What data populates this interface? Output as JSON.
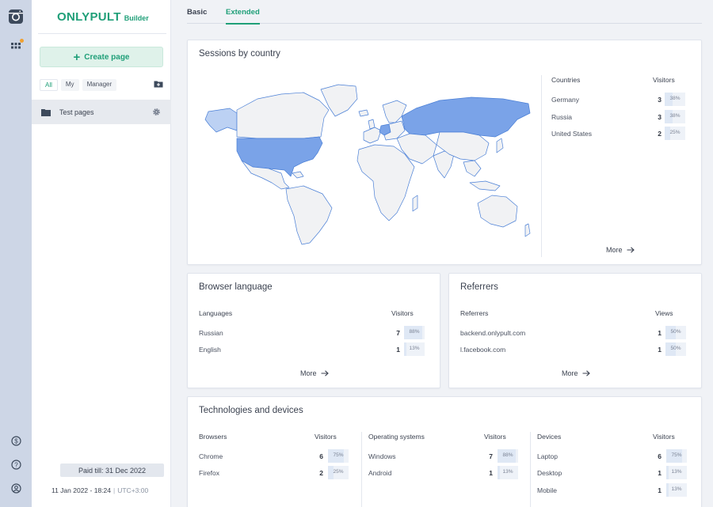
{
  "app": {
    "logo_main": "ONLYPULT",
    "logo_sub": "Builder",
    "accent_color": "#1f9f78",
    "map_highlight_color": "#7aa3e8"
  },
  "rail": {
    "icons": [
      "instagram-icon",
      "apps-grid-icon",
      "dollar-icon",
      "help-icon",
      "account-icon"
    ]
  },
  "sidebar": {
    "create_label": "Create page",
    "filters": [
      "All",
      "My",
      "Manager"
    ],
    "active_filter": "All",
    "pages": [
      {
        "name": "Test pages"
      }
    ],
    "paid_till": "Paid till: 31 Dec 2022",
    "datetime": "11 Jan 2022 - 18:24",
    "timezone": "UTC+3:00"
  },
  "tabs": [
    {
      "label": "Basic",
      "active": false
    },
    {
      "label": "Extended",
      "active": true
    }
  ],
  "sessions": {
    "title": "Sessions by country",
    "col_left": "Countries",
    "col_right": "Visitors",
    "rows": [
      {
        "label": "Germany",
        "value": "3",
        "pct": "38%",
        "frac": 0.38
      },
      {
        "label": "Russia",
        "value": "3",
        "pct": "38%",
        "frac": 0.38
      },
      {
        "label": "United States",
        "value": "2",
        "pct": "25%",
        "frac": 0.25
      }
    ],
    "more": "More"
  },
  "browser_language": {
    "title": "Browser language",
    "col_left": "Languages",
    "col_right": "Visitors",
    "rows": [
      {
        "label": "Russian",
        "value": "7",
        "pct": "88%",
        "frac": 0.88
      },
      {
        "label": "English",
        "value": "1",
        "pct": "13%",
        "frac": 0.13
      }
    ],
    "more": "More"
  },
  "referrers": {
    "title": "Referrers",
    "col_left": "Referrers",
    "col_right": "Views",
    "rows": [
      {
        "label": "backend.onlypult.com",
        "value": "1",
        "pct": "50%",
        "frac": 0.5
      },
      {
        "label": "l.facebook.com",
        "value": "1",
        "pct": "50%",
        "frac": 0.5
      }
    ],
    "more": "More"
  },
  "technologies": {
    "title": "Technologies and devices",
    "browsers": {
      "col_left": "Browsers",
      "col_right": "Visitors",
      "rows": [
        {
          "label": "Chrome",
          "value": "6",
          "pct": "75%",
          "frac": 0.75
        },
        {
          "label": "Firefox",
          "value": "2",
          "pct": "25%",
          "frac": 0.25
        }
      ]
    },
    "os": {
      "col_left": "Operating systems",
      "col_right": "Visitors",
      "rows": [
        {
          "label": "Windows",
          "value": "7",
          "pct": "88%",
          "frac": 0.88
        },
        {
          "label": "Android",
          "value": "1",
          "pct": "13%",
          "frac": 0.13
        }
      ]
    },
    "devices": {
      "col_left": "Devices",
      "col_right": "Visitors",
      "rows": [
        {
          "label": "Laptop",
          "value": "6",
          "pct": "75%",
          "frac": 0.75
        },
        {
          "label": "Desktop",
          "value": "1",
          "pct": "13%",
          "frac": 0.13
        },
        {
          "label": "Mobile",
          "value": "1",
          "pct": "13%",
          "frac": 0.13
        }
      ]
    }
  }
}
